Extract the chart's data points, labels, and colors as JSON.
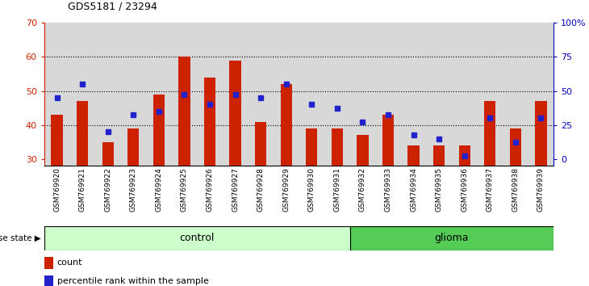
{
  "title": "GDS5181 / 23294",
  "samples": [
    "GSM769920",
    "GSM769921",
    "GSM769922",
    "GSM769923",
    "GSM769924",
    "GSM769925",
    "GSM769926",
    "GSM769927",
    "GSM769928",
    "GSM769929",
    "GSM769930",
    "GSM769931",
    "GSM769932",
    "GSM769933",
    "GSM769934",
    "GSM769935",
    "GSM769936",
    "GSM769937",
    "GSM769938",
    "GSM769939"
  ],
  "bar_values": [
    43,
    47,
    35,
    39,
    49,
    60,
    54,
    59,
    41,
    52,
    39,
    39,
    37,
    43,
    34,
    34,
    34,
    47,
    39,
    47
  ],
  "blue_markers": [
    48,
    52,
    38,
    43,
    44,
    49,
    46,
    49,
    48,
    52,
    46,
    45,
    41,
    43,
    37,
    36,
    31,
    42,
    35,
    42
  ],
  "bar_color": "#cc2200",
  "marker_color": "#2222cc",
  "ymin": 28,
  "ymax": 70,
  "y_ticks_left": [
    30,
    40,
    50,
    60,
    70
  ],
  "y_ticks_right": [
    0,
    25,
    50,
    75,
    100
  ],
  "control_count": 12,
  "glioma_count": 8,
  "control_label": "control",
  "glioma_label": "glioma",
  "disease_state_label": "disease state",
  "legend_count_label": "count",
  "legend_percentile_label": "percentile rank within the sample",
  "col_bg_color": "#d8d8d8",
  "plot_bg_color": "#ffffff",
  "control_bg": "#ccffcc",
  "glioma_bg": "#55cc55",
  "right_axis_color": "#0000bb",
  "left_axis_color": "#cc2200"
}
